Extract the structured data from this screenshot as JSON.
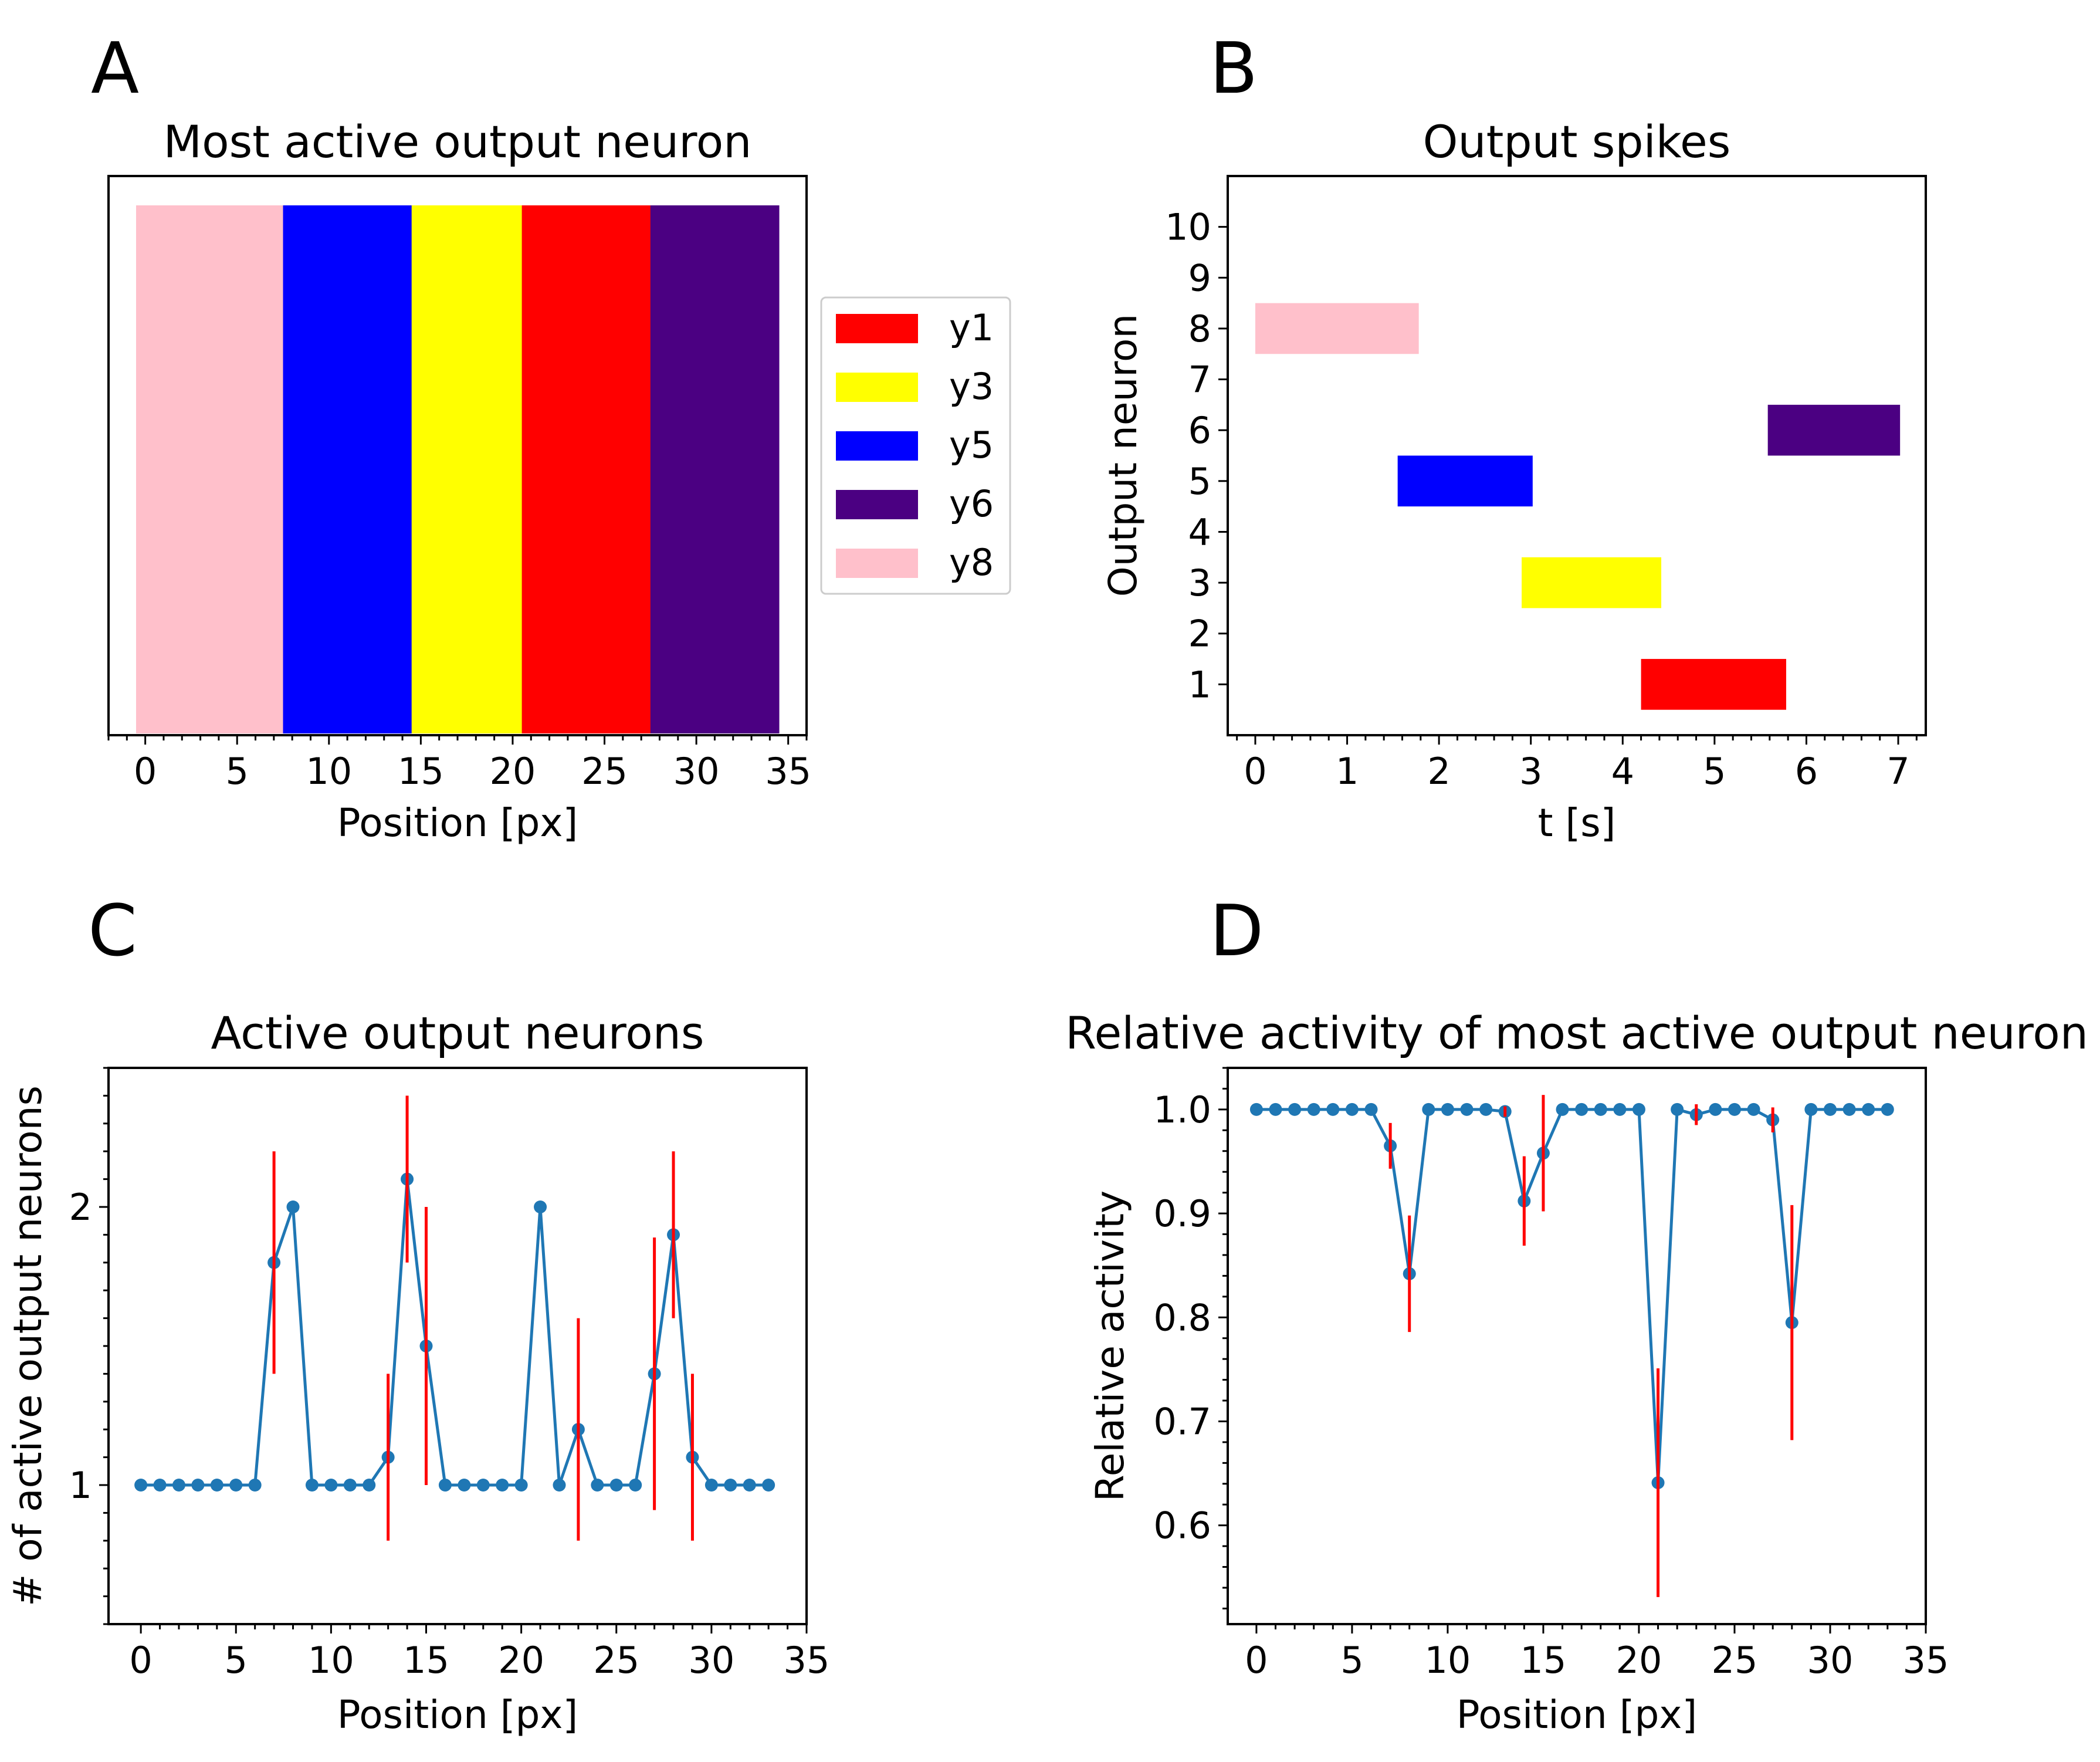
{
  "chart_data": [
    {
      "panel": "A",
      "type": "bar",
      "title": "Most active output neuron",
      "xlabel": "Position [px]",
      "ylabel": "",
      "xlim": [
        -2,
        36
      ],
      "xticks": [
        0,
        5,
        10,
        15,
        20,
        25,
        30,
        35
      ],
      "segments": [
        {
          "label": "y8",
          "x_start": -0.5,
          "x_end": 7.5,
          "color": "#FFC0CB"
        },
        {
          "label": "y5",
          "x_start": 7.5,
          "x_end": 14.5,
          "color": "#0000FF"
        },
        {
          "label": "y3",
          "x_start": 14.5,
          "x_end": 20.5,
          "color": "#FFFF00"
        },
        {
          "label": "y1",
          "x_start": 20.5,
          "x_end": 27.5,
          "color": "#FF0000"
        },
        {
          "label": "y6",
          "x_start": 27.5,
          "x_end": 34.5,
          "color": "#4B0082"
        }
      ],
      "legend": {
        "placement": "right, outside axes",
        "entries": [
          {
            "label": "y1",
            "color": "#FF0000"
          },
          {
            "label": "y3",
            "color": "#FFFF00"
          },
          {
            "label": "y5",
            "color": "#0000FF"
          },
          {
            "label": "y6",
            "color": "#4B0082"
          },
          {
            "label": "y8",
            "color": "#FFC0CB"
          }
        ]
      }
    },
    {
      "panel": "B",
      "type": "scatter",
      "title": "Output spikes",
      "xlabel": "t [s]",
      "ylabel": "Output neuron",
      "xlim": [
        -0.3,
        7.3
      ],
      "ylim": [
        0,
        11
      ],
      "xticks": [
        0,
        1,
        2,
        3,
        4,
        5,
        6,
        7
      ],
      "yticks": [
        1,
        2,
        3,
        4,
        5,
        6,
        7,
        8,
        9,
        10
      ],
      "spike_blocks": [
        {
          "neuron": 8,
          "t_start": 0.0,
          "t_end": 1.78,
          "color": "#FFC0CB"
        },
        {
          "neuron": 5,
          "t_start": 1.55,
          "t_end": 3.02,
          "color": "#0000FF"
        },
        {
          "neuron": 3,
          "t_start": 2.9,
          "t_end": 4.42,
          "color": "#FFFF00"
        },
        {
          "neuron": 1,
          "t_start": 4.2,
          "t_end": 5.78,
          "color": "#FF0000"
        },
        {
          "neuron": 6,
          "t_start": 5.58,
          "t_end": 7.02,
          "color": "#4B0082"
        }
      ]
    },
    {
      "panel": "C",
      "type": "line",
      "title": "Active output neurons",
      "xlabel": "Position [px]",
      "ylabel": "# of active output neurons",
      "xlim": [
        -1.7,
        35
      ],
      "ylim": [
        0.5,
        2.5
      ],
      "xticks": [
        0,
        5,
        10,
        15,
        20,
        25,
        30,
        35
      ],
      "yticks": [
        1,
        2
      ],
      "line_color": "#1f77b4",
      "error_color": "#FF0000",
      "x": [
        0,
        1,
        2,
        3,
        4,
        5,
        6,
        7,
        8,
        9,
        10,
        11,
        12,
        13,
        14,
        15,
        16,
        17,
        18,
        19,
        20,
        21,
        22,
        23,
        24,
        25,
        26,
        27,
        28,
        29,
        30,
        31,
        32,
        33
      ],
      "y": [
        1,
        1,
        1,
        1,
        1,
        1,
        1,
        1.8,
        2,
        1,
        1,
        1,
        1,
        1.1,
        2.1,
        1.5,
        1,
        1,
        1,
        1,
        1,
        2,
        1,
        1.2,
        1,
        1,
        1,
        1.4,
        1.9,
        1.1,
        1,
        1,
        1,
        1
      ],
      "yerr": [
        0,
        0,
        0,
        0,
        0,
        0,
        0,
        0.4,
        0,
        0,
        0,
        0,
        0,
        0.3,
        0.3,
        0.5,
        0,
        0,
        0,
        0,
        0,
        0,
        0,
        0.4,
        0,
        0,
        0,
        0.49,
        0.3,
        0.3,
        0,
        0,
        0,
        0
      ]
    },
    {
      "panel": "D",
      "type": "line",
      "title": "Relative activity of most active output neuron",
      "xlabel": "Position [px]",
      "ylabel": "Relative activity",
      "xlim": [
        -1.5,
        35
      ],
      "ylim": [
        0.505,
        1.04
      ],
      "xticks": [
        0,
        5,
        10,
        15,
        20,
        25,
        30,
        35
      ],
      "yticks": [
        0.6,
        0.7,
        0.8,
        0.9,
        1.0
      ],
      "ytick_labels": [
        "0.6",
        "0.7",
        "0.8",
        "0.9",
        "1.0"
      ],
      "line_color": "#1f77b4",
      "error_color": "#FF0000",
      "x": [
        0,
        1,
        2,
        3,
        4,
        5,
        6,
        7,
        8,
        9,
        10,
        11,
        12,
        13,
        14,
        15,
        16,
        17,
        18,
        19,
        20,
        21,
        22,
        23,
        24,
        25,
        26,
        27,
        28,
        29,
        30,
        31,
        32,
        33
      ],
      "y": [
        1,
        1,
        1,
        1,
        1,
        1,
        1,
        0.965,
        0.842,
        1,
        1,
        1,
        1,
        0.998,
        0.912,
        0.958,
        1,
        1,
        1,
        1,
        1,
        0.641,
        1,
        0.995,
        1,
        1,
        1,
        0.99,
        0.795,
        1,
        1,
        1,
        1,
        1
      ],
      "yerr": [
        0,
        0,
        0,
        0,
        0,
        0,
        0,
        0.022,
        0.056,
        0,
        0,
        0,
        0,
        0.005,
        0.043,
        0.056,
        0,
        0,
        0,
        0,
        0,
        0.11,
        0,
        0.01,
        0,
        0,
        0,
        0.012,
        0.113,
        0,
        0,
        0,
        0,
        0
      ]
    }
  ]
}
